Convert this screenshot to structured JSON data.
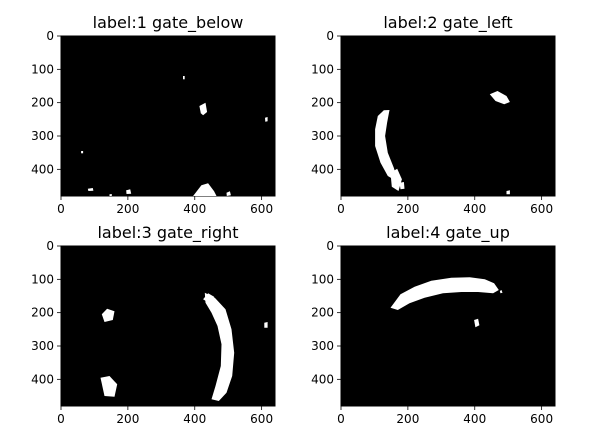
{
  "chart_data": [
    {
      "type": "heatmap",
      "title": "label:1 gate_below",
      "xticks": [
        0,
        200,
        400,
        600
      ],
      "yticks": [
        0,
        100,
        200,
        300,
        400
      ],
      "xlim": [
        0,
        640
      ],
      "ylim": [
        480,
        0
      ],
      "background_color": "#000000",
      "mask_color": "#ffffff",
      "blobs": [
        {
          "name": "blob-center",
          "points": [
            [
              414,
              210
            ],
            [
              432,
              200
            ],
            [
              437,
              228
            ],
            [
              425,
              238
            ],
            [
              418,
              232
            ]
          ]
        },
        {
          "name": "blob-bottom-mound",
          "points": [
            [
              395,
              480
            ],
            [
              420,
              448
            ],
            [
              440,
              442
            ],
            [
              458,
              466
            ],
            [
              465,
              480
            ]
          ]
        },
        {
          "name": "blob-bottom-right",
          "points": [
            [
              495,
              470
            ],
            [
              505,
              466
            ],
            [
              508,
              478
            ],
            [
              496,
              480
            ]
          ]
        },
        {
          "name": "blob-bottom-left",
          "points": [
            [
              80,
              458
            ],
            [
              95,
              456
            ],
            [
              97,
              464
            ],
            [
              82,
              465
            ]
          ]
        },
        {
          "name": "blob-bottom-mid",
          "points": [
            [
              195,
              463
            ],
            [
              207,
              460
            ],
            [
              210,
              473
            ],
            [
              196,
              474
            ]
          ]
        },
        {
          "name": "dot-1",
          "points": [
            [
              145,
              475
            ],
            [
              152,
              474
            ],
            [
              152,
              480
            ],
            [
              145,
              480
            ]
          ]
        },
        {
          "name": "dot-2",
          "points": [
            [
              365,
              120
            ],
            [
              370,
              120
            ],
            [
              370,
              130
            ],
            [
              365,
              130
            ]
          ]
        },
        {
          "name": "dot-3",
          "points": [
            [
              610,
              245
            ],
            [
              618,
              243
            ],
            [
              618,
              256
            ],
            [
              611,
              257
            ]
          ]
        },
        {
          "name": "dot-4",
          "points": [
            [
              60,
              345
            ],
            [
              66,
              345
            ],
            [
              66,
              352
            ],
            [
              60,
              352
            ]
          ]
        }
      ]
    },
    {
      "type": "heatmap",
      "title": "label:2 gate_left",
      "xticks": [
        0,
        200,
        400,
        600
      ],
      "yticks": [
        0,
        100,
        200,
        300,
        400
      ],
      "xlim": [
        0,
        640
      ],
      "ylim": [
        480,
        0
      ],
      "background_color": "#000000",
      "mask_color": "#ffffff",
      "blobs": [
        {
          "name": "blob-left-arc",
          "points": [
            [
              110,
              240
            ],
            [
              128,
              223
            ],
            [
              145,
              222
            ],
            [
              138,
              260
            ],
            [
              132,
              300
            ],
            [
              140,
              350
            ],
            [
              158,
              395
            ],
            [
              168,
              428
            ],
            [
              160,
              432
            ],
            [
              140,
              420
            ],
            [
              118,
              380
            ],
            [
              102,
              330
            ],
            [
              102,
              280
            ]
          ]
        },
        {
          "name": "blob-left-lower",
          "points": [
            [
              148,
              410
            ],
            [
              168,
              398
            ],
            [
              182,
              430
            ],
            [
              172,
              465
            ],
            [
              152,
              452
            ]
          ]
        },
        {
          "name": "blob-left-lower-2",
          "points": [
            [
              175,
              440
            ],
            [
              188,
              438
            ],
            [
              190,
              458
            ],
            [
              178,
              460
            ]
          ]
        },
        {
          "name": "blob-top-right",
          "points": [
            [
              445,
              175
            ],
            [
              468,
              165
            ],
            [
              495,
              180
            ],
            [
              505,
              198
            ],
            [
              488,
              205
            ],
            [
              462,
              195
            ]
          ]
        },
        {
          "name": "dot-bottom",
          "points": [
            [
              495,
              465
            ],
            [
              505,
              463
            ],
            [
              505,
              475
            ],
            [
              495,
              475
            ]
          ]
        }
      ]
    },
    {
      "type": "heatmap",
      "title": "label:3 gate_right",
      "xticks": [
        0,
        200,
        400,
        600
      ],
      "yticks": [
        0,
        100,
        200,
        300,
        400
      ],
      "xlim": [
        0,
        640
      ],
      "ylim": [
        480,
        0
      ],
      "background_color": "#000000",
      "mask_color": "#ffffff",
      "blobs": [
        {
          "name": "blob-right-arc",
          "points": [
            [
              430,
              140
            ],
            [
              460,
              155
            ],
            [
              492,
              190
            ],
            [
              510,
              250
            ],
            [
              518,
              320
            ],
            [
              512,
              390
            ],
            [
              495,
              440
            ],
            [
              472,
              465
            ],
            [
              450,
              460
            ],
            [
              462,
              420
            ],
            [
              478,
              360
            ],
            [
              480,
              295
            ],
            [
              468,
              240
            ],
            [
              450,
              200
            ],
            [
              432,
              170
            ]
          ]
        },
        {
          "name": "blob-right-top",
          "points": [
            [
              425,
              160
            ],
            [
              440,
              142
            ],
            [
              458,
              152
            ],
            [
              448,
              175
            ]
          ]
        },
        {
          "name": "blob-left-small",
          "points": [
            [
              122,
              205
            ],
            [
              138,
              188
            ],
            [
              160,
              196
            ],
            [
              155,
              222
            ],
            [
              130,
              228
            ]
          ]
        },
        {
          "name": "blob-left-bottom",
          "points": [
            [
              118,
              395
            ],
            [
              145,
              390
            ],
            [
              168,
              415
            ],
            [
              160,
              452
            ],
            [
              130,
              450
            ]
          ]
        },
        {
          "name": "dot-right-edge",
          "points": [
            [
              608,
              230
            ],
            [
              618,
              228
            ],
            [
              618,
              245
            ],
            [
              608,
              245
            ]
          ]
        }
      ]
    },
    {
      "type": "heatmap",
      "title": "label:4 gate_up",
      "xticks": [
        0,
        200,
        400,
        600
      ],
      "yticks": [
        0,
        100,
        200,
        300,
        400
      ],
      "xlim": [
        0,
        640
      ],
      "ylim": [
        480,
        0
      ],
      "background_color": "#000000",
      "mask_color": "#ffffff",
      "blobs": [
        {
          "name": "blob-top-arc",
          "points": [
            [
              148,
              185
            ],
            [
              178,
              145
            ],
            [
              220,
              122
            ],
            [
              270,
              104
            ],
            [
              330,
              95
            ],
            [
              385,
              94
            ],
            [
              430,
              100
            ],
            [
              458,
              112
            ],
            [
              472,
              132
            ],
            [
              455,
              142
            ],
            [
              410,
              138
            ],
            [
              360,
              138
            ],
            [
              305,
              142
            ],
            [
              250,
              155
            ],
            [
              205,
              172
            ],
            [
              170,
              192
            ]
          ]
        },
        {
          "name": "blob-center-small",
          "points": [
            [
              398,
              222
            ],
            [
              410,
              218
            ],
            [
              414,
              238
            ],
            [
              402,
              244
            ]
          ]
        },
        {
          "name": "dot-arc-right",
          "points": [
            [
              475,
              135
            ],
            [
              480,
              132
            ],
            [
              483,
              140
            ],
            [
              477,
              142
            ]
          ]
        }
      ]
    }
  ]
}
